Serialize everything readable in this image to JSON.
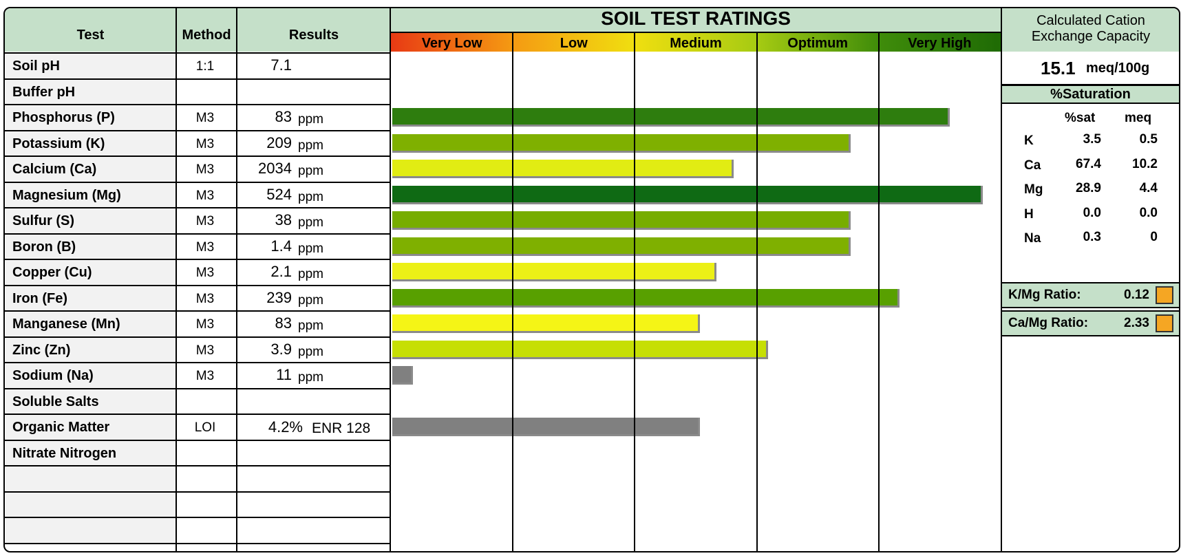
{
  "table": {
    "headers": {
      "test": "Test",
      "method": "Method",
      "results": "Results"
    },
    "rows": [
      {
        "test": "Soil pH",
        "method": "1:1",
        "value": "7.1",
        "unit": ""
      },
      {
        "test": "Buffer pH",
        "method": "",
        "value": "",
        "unit": ""
      },
      {
        "test": "Phosphorus (P)",
        "method": "M3",
        "value": "83",
        "unit": "ppm"
      },
      {
        "test": "Potassium (K)",
        "method": "M3",
        "value": "209",
        "unit": "ppm"
      },
      {
        "test": "Calcium (Ca)",
        "method": "M3",
        "value": "2034",
        "unit": "ppm"
      },
      {
        "test": "Magnesium (Mg)",
        "method": "M3",
        "value": "524",
        "unit": "ppm"
      },
      {
        "test": "Sulfur (S)",
        "method": "M3",
        "value": "38",
        "unit": "ppm"
      },
      {
        "test": "Boron (B)",
        "method": "M3",
        "value": "1.4",
        "unit": "ppm"
      },
      {
        "test": "Copper (Cu)",
        "method": "M3",
        "value": "2.1",
        "unit": "ppm"
      },
      {
        "test": "Iron (Fe)",
        "method": "M3",
        "value": "239",
        "unit": "ppm"
      },
      {
        "test": "Manganese (Mn)",
        "method": "M3",
        "value": "83",
        "unit": "ppm"
      },
      {
        "test": "Zinc (Zn)",
        "method": "M3",
        "value": "3.9",
        "unit": "ppm"
      },
      {
        "test": "Sodium (Na)",
        "method": "M3",
        "value": "11",
        "unit": "ppm"
      },
      {
        "test": "Soluble Salts",
        "method": "",
        "value": "",
        "unit": ""
      },
      {
        "test": "Organic Matter",
        "method": "LOI",
        "value": "4.2%",
        "unit": "ENR 128"
      },
      {
        "test": "Nitrate Nitrogen",
        "method": "",
        "value": "",
        "unit": ""
      },
      {
        "test": "",
        "method": "",
        "value": "",
        "unit": ""
      },
      {
        "test": "",
        "method": "",
        "value": "",
        "unit": ""
      },
      {
        "test": "",
        "method": "",
        "value": "",
        "unit": ""
      }
    ]
  },
  "chart_data": {
    "type": "bar",
    "orientation": "horizontal",
    "title": "SOIL TEST RATINGS",
    "rating_bands": [
      "Very Low",
      "Low",
      "Medium",
      "Optimum",
      "Very High"
    ],
    "x_scale": "rating level, 0 = left edge of Very Low, 5 = right edge of Very High",
    "categories": [
      "Soil pH",
      "Buffer pH",
      "Phosphorus (P)",
      "Potassium (K)",
      "Calcium (Ca)",
      "Magnesium (Mg)",
      "Sulfur (S)",
      "Boron (B)",
      "Copper (Cu)",
      "Iron (Fe)",
      "Manganese (Mn)",
      "Zinc (Zn)",
      "Sodium (Na)",
      "Soluble Salts",
      "Organic Matter",
      "Nitrate Nitrogen"
    ],
    "values": [
      null,
      null,
      4.57,
      3.76,
      2.8,
      4.84,
      3.76,
      3.76,
      2.66,
      4.16,
      2.52,
      3.08,
      0.17,
      null,
      2.52,
      null
    ],
    "bar_colors": [
      null,
      null,
      "#2e7d0e",
      "#7fb000",
      "#e1ec13",
      "#0f6a14",
      "#77ad00",
      "#7fb000",
      "#ecf016",
      "#58a000",
      "#f5f516",
      "#c6df04",
      "#808080",
      null,
      "#808080",
      null
    ],
    "band_colors": [
      "#e83a14",
      "#f59a12",
      "#f0df10",
      "#a6cb12",
      "#3f8c0a"
    ]
  },
  "cec": {
    "title": "Calculated Cation Exchange Capacity",
    "value": "15.1",
    "unit": "meq/100g"
  },
  "saturation": {
    "title": "%Saturation",
    "col_sat": "%sat",
    "col_meq": "meq",
    "rows": [
      {
        "ion": "K",
        "sat": "3.5",
        "meq": "0.5"
      },
      {
        "ion": "Ca",
        "sat": "67.4",
        "meq": "10.2"
      },
      {
        "ion": "Mg",
        "sat": "28.9",
        "meq": "4.4"
      },
      {
        "ion": "H",
        "sat": "0.0",
        "meq": "0.0"
      },
      {
        "ion": "Na",
        "sat": "0.3",
        "meq": "0"
      }
    ]
  },
  "ratios": [
    {
      "label": "K/Mg Ratio:",
      "value": "0.12",
      "color": "#f5a623"
    },
    {
      "label": "Ca/Mg Ratio:",
      "value": "2.33",
      "color": "#f5a623"
    }
  ]
}
